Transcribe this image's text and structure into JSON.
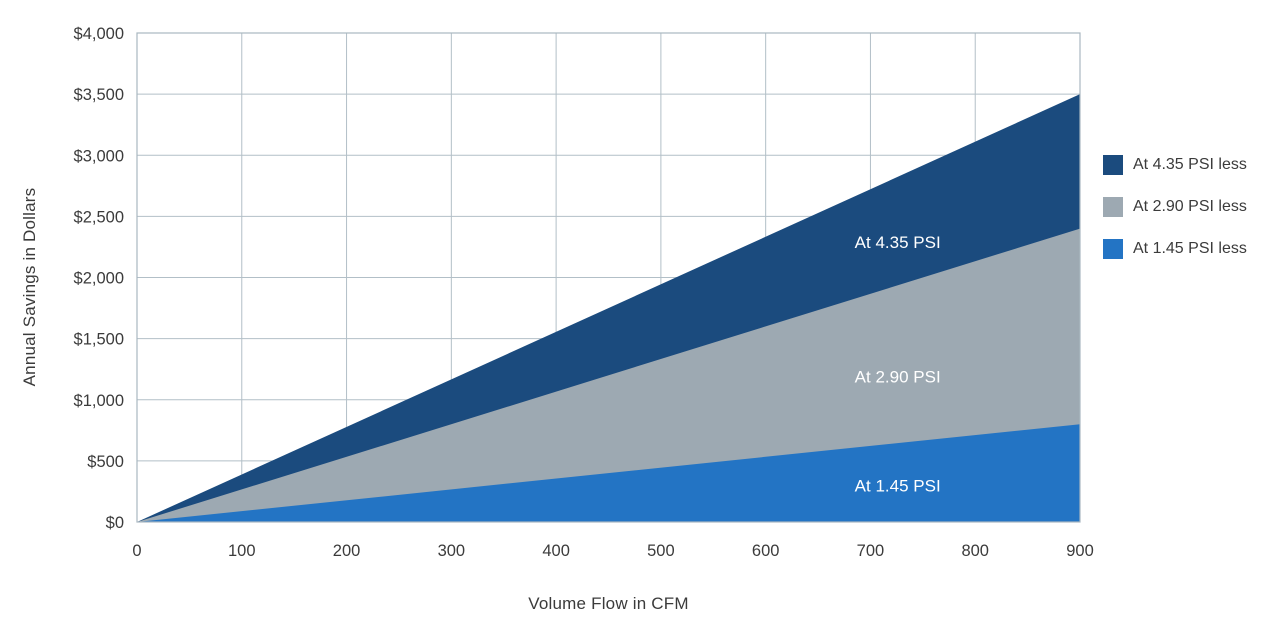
{
  "chart_data": {
    "type": "area",
    "title": "",
    "xlabel": "Volume Flow in CFM",
    "ylabel": "Annual Savings in Dollars",
    "xlim": [
      0,
      900
    ],
    "ylim": [
      0,
      4000
    ],
    "grid": true,
    "legend_position": "right",
    "x_ticks": [
      0,
      100,
      200,
      300,
      400,
      500,
      600,
      700,
      800,
      900
    ],
    "x_tick_labels": [
      "0",
      "100",
      "200",
      "300",
      "400",
      "500",
      "600",
      "700",
      "800",
      "900"
    ],
    "y_ticks": [
      0,
      500,
      1000,
      1500,
      2000,
      2500,
      3000,
      3500,
      4000
    ],
    "y_tick_labels": [
      "$0",
      "$500",
      "$1,000",
      "$1,500",
      "$2,000",
      "$2,500",
      "$3,000",
      "$3,500",
      "$4,000"
    ],
    "series": [
      {
        "name": "At 4.35 PSI less",
        "color": "#1b4b7e",
        "x": [
          0,
          900
        ],
        "values": [
          0,
          3500
        ],
        "area_label": {
          "text": "At 4.35 PSI",
          "x": 726,
          "y": 2290
        }
      },
      {
        "name": "At 2.90 PSI less",
        "color": "#9da9b2",
        "x": [
          0,
          900
        ],
        "values": [
          0,
          2400
        ],
        "area_label": {
          "text": "At 2.90 PSI",
          "x": 726,
          "y": 1190
        }
      },
      {
        "name": "At 1.45 PSI less",
        "color": "#2374c4",
        "x": [
          0,
          900
        ],
        "values": [
          0,
          800
        ],
        "area_label": {
          "text": "At 1.45 PSI",
          "x": 726,
          "y": 300
        }
      }
    ],
    "colors": {
      "grid": "#b2bfc7",
      "plot_border": "#a9b7c0",
      "tick_text": "#3b3b3b",
      "area_label_text": "#ffffff",
      "background": "#ffffff"
    }
  }
}
